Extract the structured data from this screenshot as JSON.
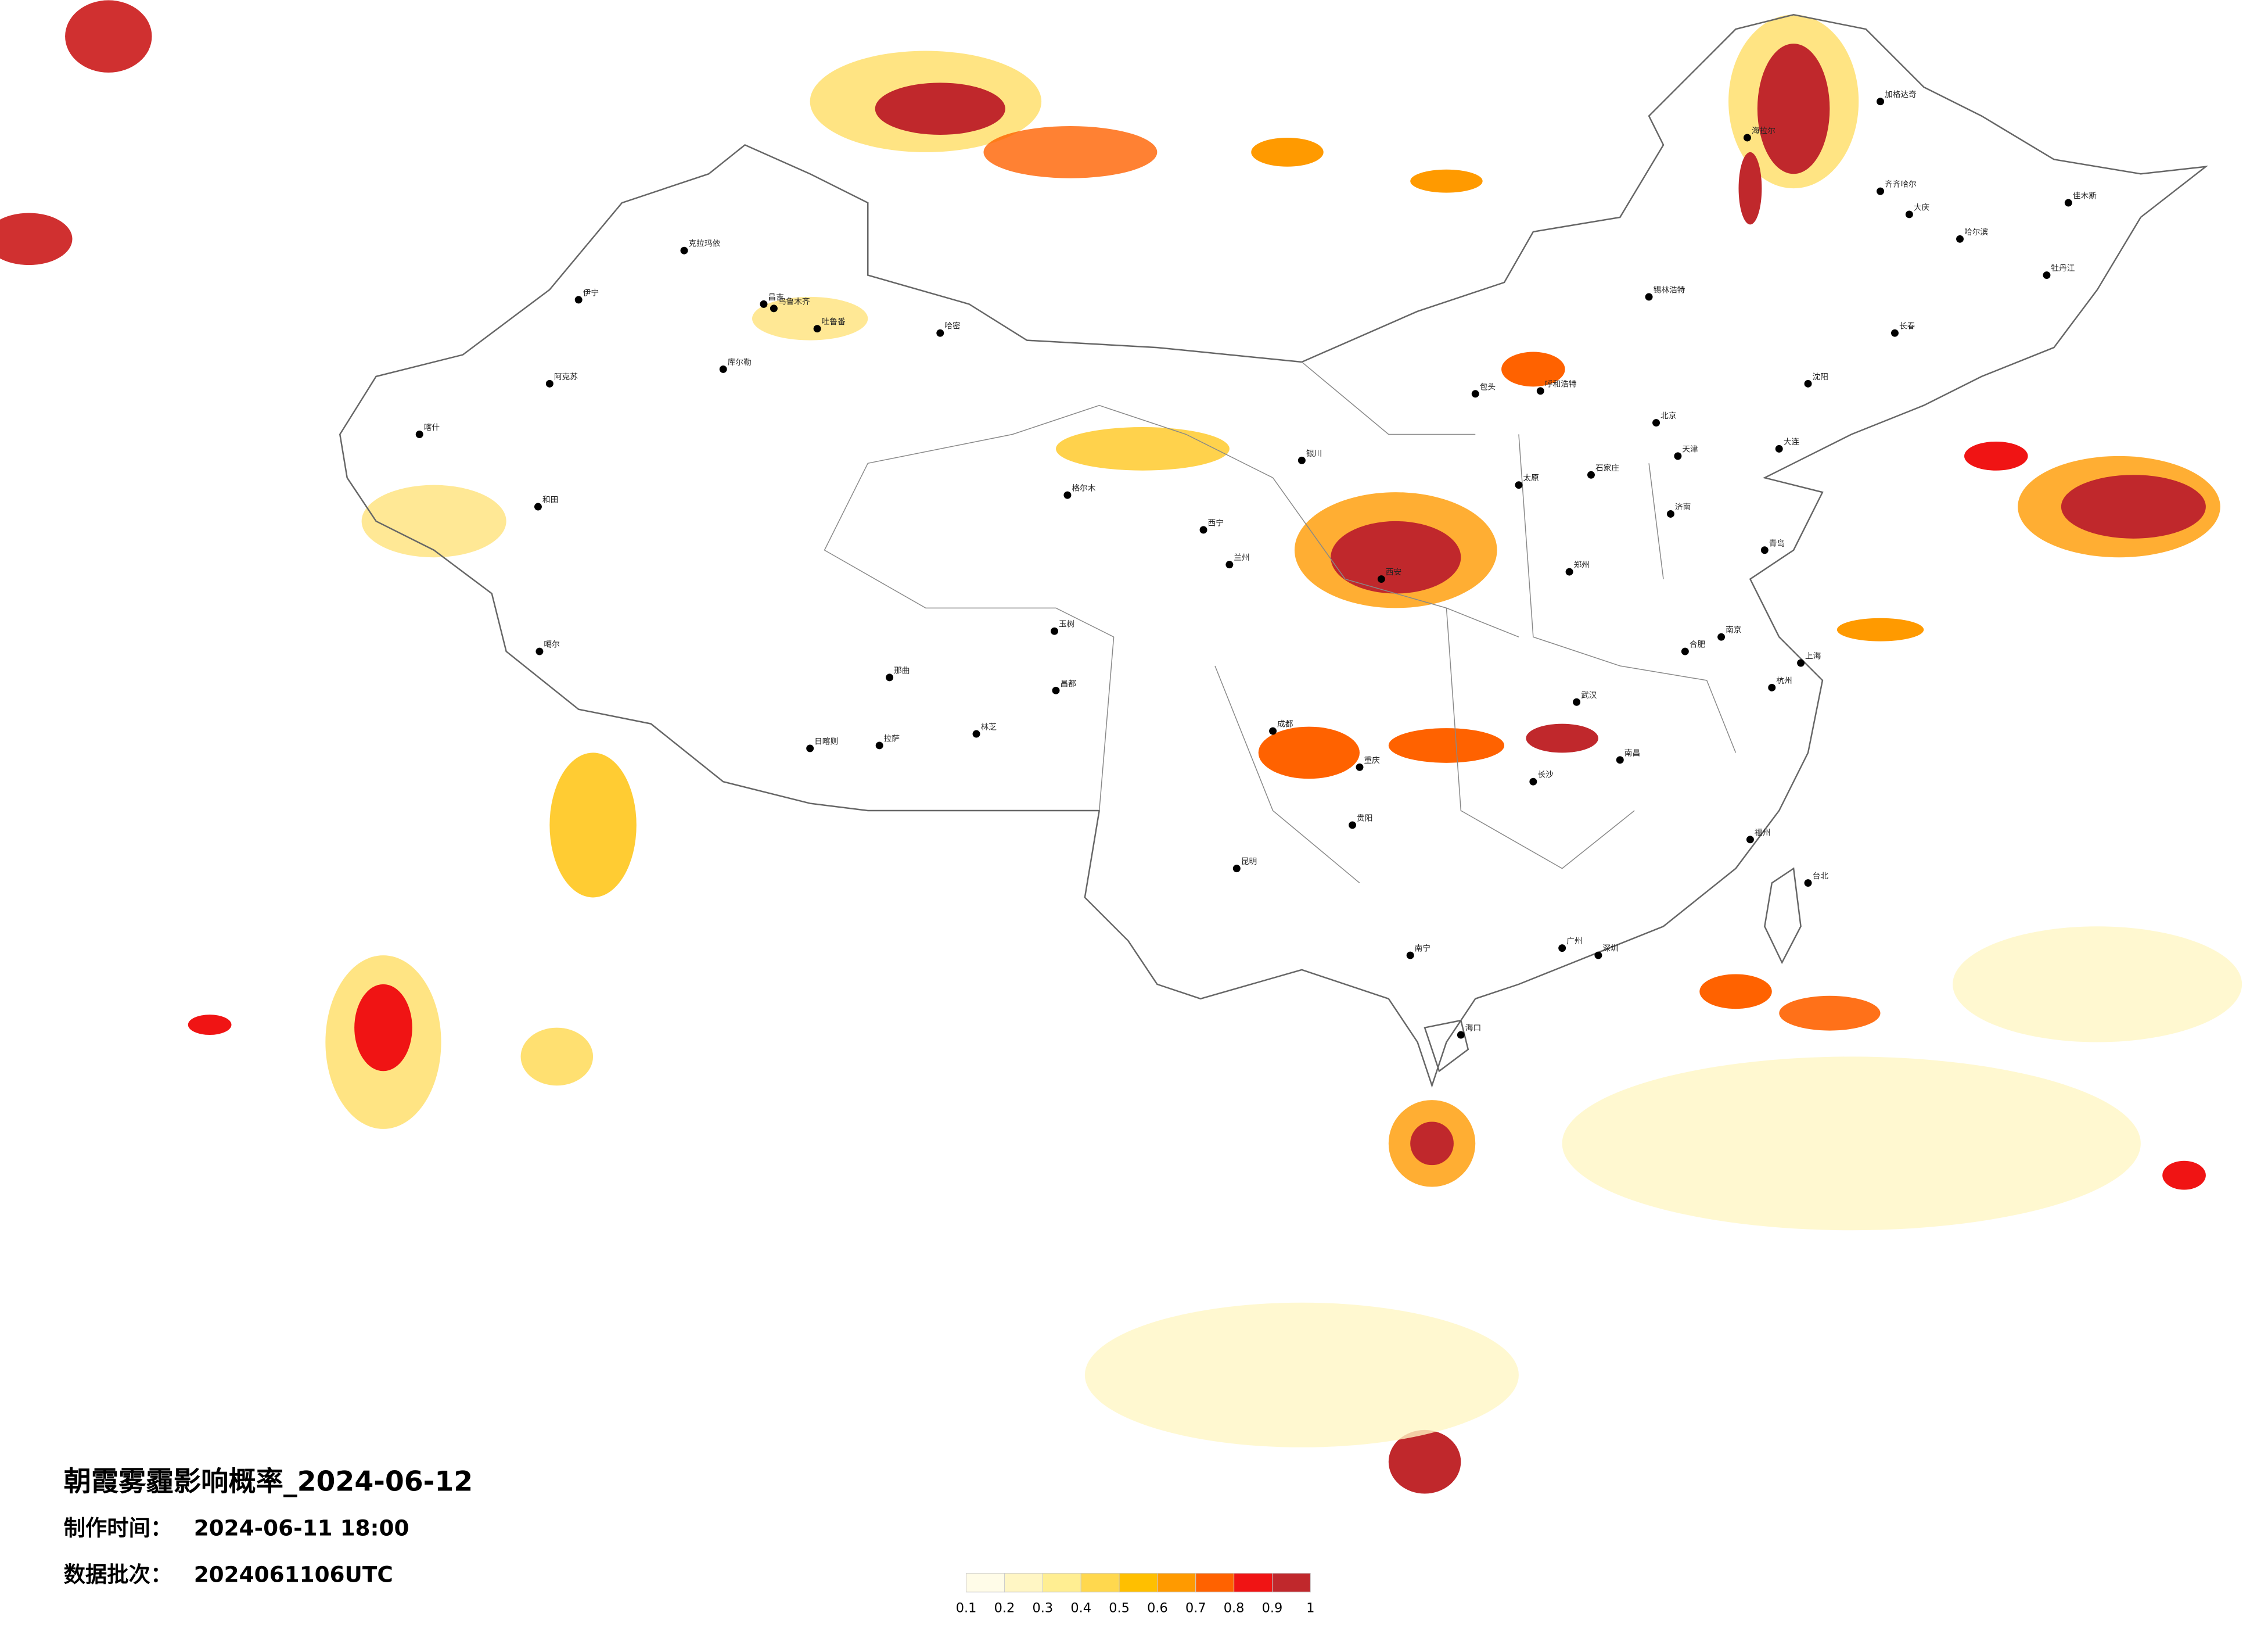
{
  "title": "朝霞雾霾影响概率_2024-06-12",
  "made_label": "制作时间：",
  "made_time": "2024-06-11 18:00",
  "batch_label": "数据批次：",
  "batch": "2024061106UTC",
  "legend": {
    "ticks": [
      0.1,
      0.2,
      0.3,
      0.4,
      0.5,
      0.6,
      0.7,
      0.8,
      0.9,
      1
    ],
    "colors": [
      "#fffce8",
      "#fff6c4",
      "#ffee92",
      "#ffd84e",
      "#ffbf00",
      "#ff9a00",
      "#ff6200",
      "#f01414",
      "#c0282c"
    ]
  },
  "cities": [
    "克拉玛依",
    "伊宁",
    "昌吉",
    "乌鲁木齐",
    "吐鲁番",
    "哈密",
    "库尔勒",
    "阿克苏",
    "喀什",
    "和田",
    "噶尔",
    "日喀则",
    "拉萨",
    "林芝",
    "那曲",
    "昌都",
    "格尔木",
    "玉树",
    "西宁",
    "兰州",
    "银川",
    "呼和浩特",
    "包头",
    "北京",
    "天津",
    "石家庄",
    "太原",
    "济南",
    "青岛",
    "郑州",
    "西安",
    "武汉",
    "合肥",
    "南京",
    "上海",
    "杭州",
    "南昌",
    "长沙",
    "福州",
    "台北",
    "广州",
    "深圳",
    "南宁",
    "海口",
    "昆明",
    "贵阳",
    "成都",
    "重庆",
    "沈阳",
    "长春",
    "哈尔滨",
    "大庆",
    "齐齐哈尔",
    "加格达奇",
    "佳木斯",
    "牡丹江",
    "大连",
    "锡林浩特",
    "海拉尔"
  ]
}
